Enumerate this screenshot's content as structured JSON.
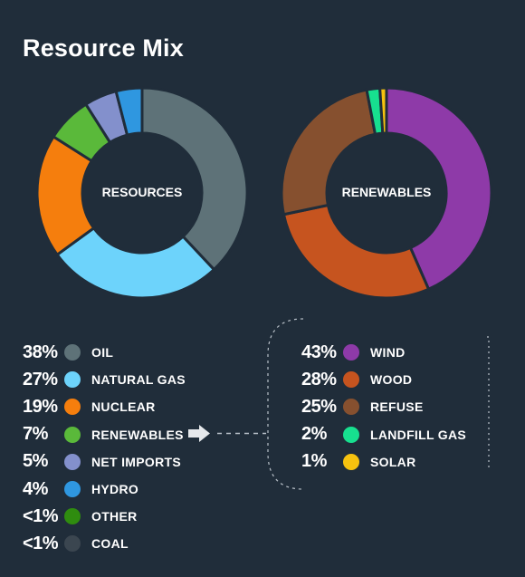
{
  "title": "Resource Mix",
  "chart_data": [
    {
      "type": "pie",
      "center_label": "RESOURCES",
      "slices": [
        {
          "label": "OIL",
          "display": "38%",
          "value": 38,
          "color": "#5e7278"
        },
        {
          "label": "NATURAL GAS",
          "display": "27%",
          "value": 27,
          "color": "#6dd3fb"
        },
        {
          "label": "NUCLEAR",
          "display": "19%",
          "value": 19,
          "color": "#f57e0d"
        },
        {
          "label": "RENEWABLES",
          "display": "7%",
          "value": 7,
          "color": "#5ab93a"
        },
        {
          "label": "NET IMPORTS",
          "display": "5%",
          "value": 5,
          "color": "#8390cc"
        },
        {
          "label": "HYDRO",
          "display": "4%",
          "value": 4,
          "color": "#2f97e0"
        },
        {
          "label": "OTHER",
          "display": "<1%",
          "value": 0,
          "color": "#2f8c0f"
        },
        {
          "label": "COAL",
          "display": "<1%",
          "value": 0,
          "color": "#3b4650"
        }
      ]
    },
    {
      "type": "pie",
      "center_label": "RENEWABLES",
      "slices": [
        {
          "label": "WIND",
          "display": "43%",
          "value": 43,
          "color": "#8e3aa8"
        },
        {
          "label": "WOOD",
          "display": "28%",
          "value": 28,
          "color": "#c6541f"
        },
        {
          "label": "REFUSE",
          "display": "25%",
          "value": 25,
          "color": "#86502f"
        },
        {
          "label": "LANDFILL GAS",
          "display": "2%",
          "value": 2,
          "color": "#17e08f"
        },
        {
          "label": "SOLAR",
          "display": "1%",
          "value": 1,
          "color": "#f6c20f"
        }
      ]
    }
  ]
}
